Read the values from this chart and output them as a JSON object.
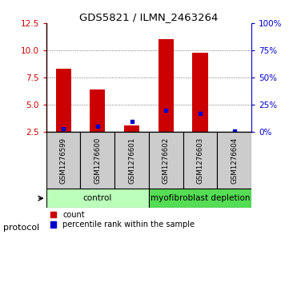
{
  "title": "GDS5821 / ILMN_2463264",
  "samples": [
    "GSM1276599",
    "GSM1276600",
    "GSM1276601",
    "GSM1276602",
    "GSM1276603",
    "GSM1276604"
  ],
  "counts": [
    8.3,
    6.4,
    3.1,
    11.0,
    9.8,
    2.5
  ],
  "percentile_ranks": [
    3,
    5,
    10,
    20,
    17,
    1
  ],
  "ymin": 2.5,
  "ymax": 12.5,
  "yticks_left": [
    2.5,
    5.0,
    7.5,
    10.0,
    12.5
  ],
  "yticks_right": [
    0,
    25,
    50,
    75,
    100
  ],
  "bar_color": "#cc0000",
  "percentile_color": "#0000cc",
  "groups": [
    {
      "label": "control",
      "samples": [
        0,
        1,
        2
      ],
      "color": "#bbffbb"
    },
    {
      "label": "myofibroblast depletion",
      "samples": [
        3,
        4,
        5
      ],
      "color": "#55dd55"
    }
  ],
  "protocol_label": "protocol",
  "legend_count_label": "count",
  "legend_percentile_label": "percentile rank within the sample",
  "grid_color": "#555555",
  "sample_box_color": "#cccccc",
  "background_color": "#ffffff"
}
